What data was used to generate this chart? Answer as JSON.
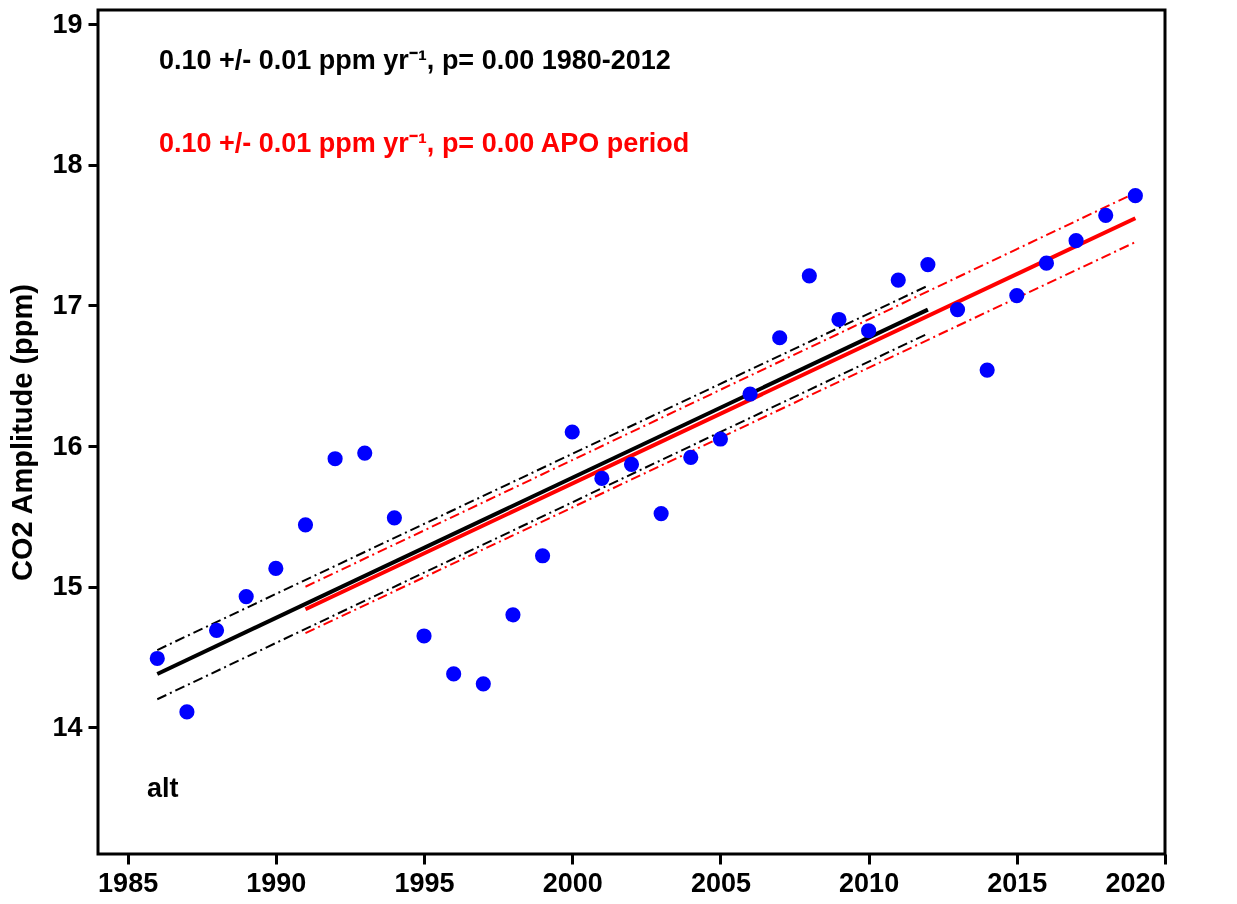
{
  "chart_data": {
    "type": "scatter",
    "ylabel": "CO2 Amplitude (ppm)",
    "xlim": [
      1984,
      2020
    ],
    "xticks": [
      1985,
      1990,
      1995,
      2000,
      2005,
      2010,
      2015,
      2020
    ],
    "ylim": [
      13.1,
      19.1
    ],
    "yticks": [
      14,
      15,
      16,
      17,
      18,
      19
    ],
    "grid": false,
    "annotations": [
      "0.10 +/- 0.01 ppm yr⁻¹, p= 0.00   1980-2012",
      "0.10 +/- 0.01 ppm yr⁻¹, p= 0.00   APO period",
      "alt"
    ],
    "series": [
      {
        "marker": "circle",
        "color": "#0000ff",
        "x": [
          1986,
          1987,
          1988,
          1989,
          1990,
          1991,
          1992,
          1993,
          1994,
          1995,
          1996,
          1997,
          1998,
          1999,
          2000,
          2001,
          2002,
          2003,
          2004,
          2005,
          2006,
          2007,
          2008,
          2009,
          2010,
          2011,
          2012,
          2013,
          2014,
          2015,
          2016,
          2017,
          2018,
          2019
        ],
        "values": [
          14.49,
          14.11,
          14.69,
          14.93,
          15.13,
          15.44,
          15.91,
          15.95,
          15.49,
          14.65,
          14.38,
          14.31,
          14.8,
          15.22,
          16.1,
          15.77,
          15.87,
          15.52,
          15.92,
          16.05,
          16.37,
          16.77,
          17.21,
          16.9,
          16.82,
          17.18,
          17.29,
          16.97,
          16.54,
          17.07,
          17.3,
          17.46,
          17.64,
          17.78
        ]
      },
      {
        "type": "line",
        "color": "#000000",
        "line_style": "solid",
        "x": [
          1986,
          2012
        ],
        "values": [
          14.38,
          16.97
        ]
      },
      {
        "type": "line",
        "color": "#000000",
        "line_style": "dashed",
        "x": [
          1986,
          2012
        ],
        "values": [
          14.55,
          17.14
        ]
      },
      {
        "type": "line",
        "color": "#000000",
        "line_style": "dashed",
        "x": [
          1986,
          2012
        ],
        "values": [
          14.2,
          16.8
        ]
      },
      {
        "type": "line",
        "color": "#ff0000",
        "line_style": "solid",
        "x": [
          1991,
          2019
        ],
        "values": [
          14.84,
          17.62
        ]
      },
      {
        "type": "line",
        "color": "#ff0000",
        "line_style": "dashed",
        "x": [
          1991,
          2019
        ],
        "values": [
          15.0,
          17.8
        ]
      },
      {
        "type": "line",
        "color": "#ff0000",
        "line_style": "dashed",
        "x": [
          1991,
          2019
        ],
        "values": [
          14.67,
          17.45
        ]
      }
    ]
  }
}
